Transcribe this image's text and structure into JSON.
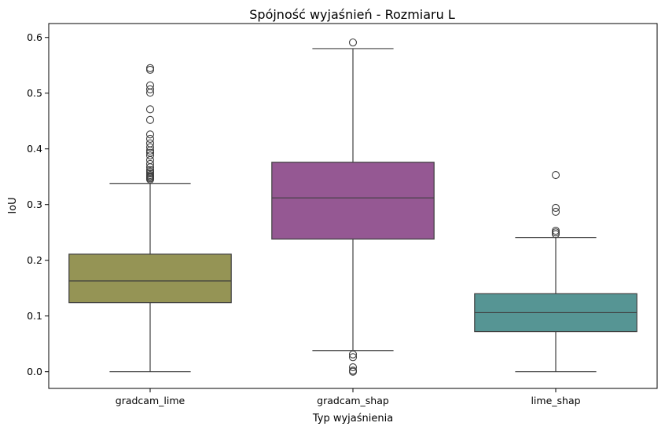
{
  "chart_data": {
    "type": "box",
    "title": "Spójność wyjaśnień - Rozmiaru L",
    "xlabel": "Typ wyjaśnienia",
    "ylabel": "IoU",
    "ylim": [
      -0.03,
      0.625
    ],
    "yticks": [
      "0.0",
      "0.1",
      "0.2",
      "0.3",
      "0.4",
      "0.5",
      "0.6"
    ],
    "grid": false,
    "categories": [
      "gradcam_lime",
      "gradcam_shap",
      "lime_shap"
    ],
    "boxes": [
      {
        "category": "gradcam_lime",
        "color": "#959455",
        "whisker_low": 0.0,
        "q1": 0.124,
        "median": 0.163,
        "q3": 0.211,
        "whisker_high": 0.338,
        "outliers": [
          0.345,
          0.347,
          0.349,
          0.351,
          0.353,
          0.356,
          0.359,
          0.362,
          0.367,
          0.373,
          0.38,
          0.388,
          0.393,
          0.397,
          0.403,
          0.41,
          0.418,
          0.426,
          0.452,
          0.471,
          0.501,
          0.507,
          0.514,
          0.542,
          0.545
        ]
      },
      {
        "category": "gradcam_shap",
        "color": "#955893",
        "whisker_low": 0.038,
        "q1": 0.238,
        "median": 0.312,
        "q3": 0.376,
        "whisker_high": 0.58,
        "outliers": [
          0.0,
          0.002,
          0.008,
          0.026,
          0.031,
          0.591
        ]
      },
      {
        "category": "lime_shap",
        "color": "#569594",
        "whisker_low": 0.0,
        "q1": 0.072,
        "median": 0.106,
        "q3": 0.14,
        "whisker_high": 0.241,
        "outliers": [
          0.247,
          0.25,
          0.253,
          0.287,
          0.294,
          0.353
        ]
      }
    ]
  }
}
